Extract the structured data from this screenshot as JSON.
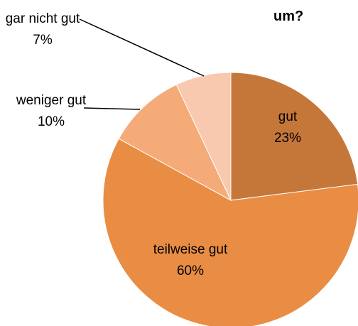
{
  "chart_data": {
    "type": "pie",
    "title": "um?",
    "categories": [
      "gut",
      "teilweise gut",
      "weniger gut",
      "gar nicht gut"
    ],
    "values": [
      23,
      60,
      10,
      7
    ],
    "value_labels": [
      "23%",
      "60%",
      "10%",
      "7%"
    ],
    "colors": [
      "#c5773a",
      "#e98d44",
      "#f4ab78",
      "#f8c9ae"
    ]
  }
}
